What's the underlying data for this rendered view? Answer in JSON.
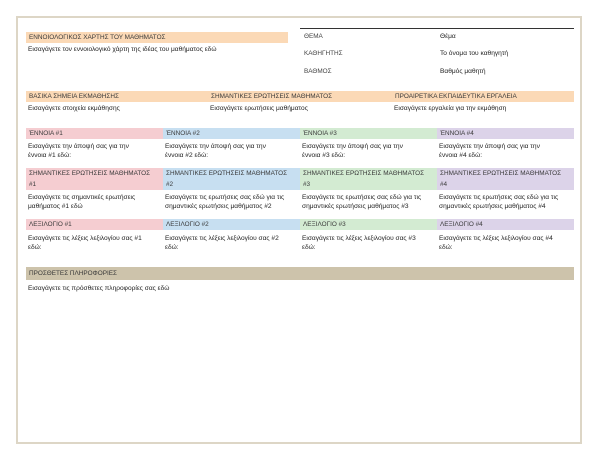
{
  "header": {
    "map_title": "ΕΝΝΟΙΟΛΟΓΙΚΟΣ ΧΑΡΤΗΣ ΤΟΥ ΜΑΘΗΜΑΤΟΣ",
    "map_text": "Εισαγάγετε τον εννοιολογικό χάρτη της ιδέας του μαθήματος εδώ"
  },
  "info": [
    {
      "label": "ΘΕΜΑ",
      "value": "Θέμα"
    },
    {
      "label": "ΚΑΘΗΓΗΤΗΣ",
      "value": "Το όνομα του καθηγητή"
    },
    {
      "label": "ΒΑΘΜΟΣ",
      "value": "Βαθμός μαθητή"
    }
  ],
  "overview": [
    {
      "title": "ΒΑΣΙΚΑ ΣΗΜΕΙΑ ΕΚΜΑΘΗΣΗΣ",
      "text": "Εισαγάγετε στοιχεία εκμάθησης"
    },
    {
      "title": "ΣΗΜΑΝΤΙΚΕΣ ΕΡΩΤΗΣΕΙΣ ΜΑΘΗΜΑΤΟΣ",
      "text": "Εισαγάγετε ερωτήσεις μαθήματος"
    },
    {
      "title": "ΠΡΟΑΙΡΕΤΙΚΑ ΕΚΠΑΙΔΕΥΤΙΚΑ ΕΡΓΑΛΕΙΑ",
      "text": "Εισαγάγετε εργαλεία για την εκμάθηση"
    }
  ],
  "columns": [
    {
      "concept_title": "ΈΝΝΟΙΑ  #1",
      "concept_text_1": "Εισαγάγετε την άποψή σας για την",
      "concept_text_2": "έννοια #1 εδώ:",
      "questions_title_1": "ΣΗΜΑΝΤΙΚΕΣ ΕΡΩΤΗΣΕΙΣ ΜΑΘΗΜΑΤΟΣ",
      "questions_title_2": "#1",
      "questions_text_1": "Εισαγάγετε τις σημαντικές ερωτήσεις",
      "questions_text_2": "μαθήματος #1 εδώ",
      "vocab_title": "ΛΕΞΙΛΟΓΙΟ #1",
      "vocab_text_1": "Εισαγάγετε τις λέξεις λεξιλογίου σας #1",
      "vocab_text_2": "εδώ:"
    },
    {
      "concept_title": "ΈΝΝΟΙΑ  #2",
      "concept_text_1": "Εισαγάγετε την άποψή σας για την",
      "concept_text_2": "έννοια #2 εδώ:",
      "questions_title_1": "ΣΗΜΑΝΤΙΚΕΣ ΕΡΩΤΗΣΕΙΣ ΜΑΘΗΜΑΤΟΣ",
      "questions_title_2": "#2",
      "questions_text_1": "Εισαγάγετε τις ερωτήσεις σας εδώ για τις",
      "questions_text_2": "σημαντικές ερωτήσεις μαθήματος #2",
      "vocab_title": "ΛΕΞΙΛΟΓΙΟ #2",
      "vocab_text_1": "Εισαγάγετε τις λέξεις λεξιλογίου σας #2",
      "vocab_text_2": "εδώ:"
    },
    {
      "concept_title": "ΈΝΝΟΙΑ  #3",
      "concept_text_1": "Εισαγάγετε την άποψή σας για την",
      "concept_text_2": "έννοια #3 εδώ:",
      "questions_title_1": "ΣΗΜΑΝΤΙΚΕΣ ΕΡΩΤΗΣΕΙΣ ΜΑΘΗΜΑΤΟΣ",
      "questions_title_2": "#3",
      "questions_text_1": "Εισαγάγετε τις ερωτήσεις σας εδώ για τις",
      "questions_text_2": "σημαντικές ερωτήσεις μαθήματος #3",
      "vocab_title": "ΛΕΞΙΛΟΓΙΟ #3",
      "vocab_text_1": "Εισαγάγετε τις λέξεις λεξιλογίου σας #3",
      "vocab_text_2": "εδώ:"
    },
    {
      "concept_title": "ΈΝΝΟΙΑ  #4",
      "concept_text_1": "Εισαγάγετε την άποψή σας για την",
      "concept_text_2": "έννοια #4 εδώ:",
      "questions_title_1": "ΣΗΜΑΝΤΙΚΕΣ ΕΡΩΤΗΣΕΙΣ ΜΑΘΗΜΑΤΟΣ",
      "questions_title_2": "#4",
      "questions_text_1": "Εισαγάγετε τις ερωτήσεις σας εδώ για τις",
      "questions_text_2": "σημαντικές ερωτήσεις μαθήματος #4",
      "vocab_title": "ΛΕΞΙΛΟΓΙΟ #4",
      "vocab_text_1": "Εισαγάγετε τις λέξεις λεξιλογίου σας #4",
      "vocab_text_2": "εδώ:"
    }
  ],
  "additional": {
    "title": "ΠΡΟΣΘΕΤΕΣ ΠΛΗΡΟΦΟΡΙΕΣ",
    "text": "Εισαγάγετε τις πρόσθετες πληροφορίες σας εδώ"
  },
  "colors": {
    "orange": "#fbd9b6",
    "pink": "#f5cdd1",
    "blue": "#c7dff1",
    "green": "#d3ebd2",
    "purple": "#dcd3e9",
    "khaki": "#cdc3ab",
    "frame": "#ddd6c6"
  }
}
